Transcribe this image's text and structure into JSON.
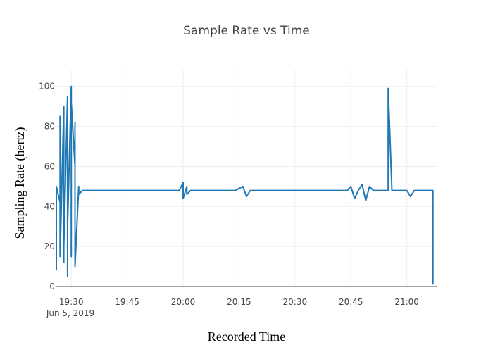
{
  "chart_data": {
    "type": "line",
    "title": "Sample Rate vs Time",
    "xlabel": "Recorded Time",
    "ylabel": "Sampling Rate (hertz)",
    "x_date_label": "Jun 5, 2019",
    "xlim": [
      "19:26",
      "21:08"
    ],
    "ylim": [
      0,
      108
    ],
    "grid": true,
    "x_ticks": [
      "19:30",
      "19:45",
      "20:00",
      "20:15",
      "20:30",
      "20:45",
      "21:00"
    ],
    "y_ticks": [
      0,
      20,
      40,
      60,
      80,
      100
    ],
    "series": [
      {
        "color": "#1f77b4",
        "x": [
          "19:26",
          "19:26",
          "19:27",
          "19:27",
          "19:27",
          "19:28",
          "19:28",
          "19:28",
          "19:28",
          "19:29",
          "19:29",
          "19:29",
          "19:29",
          "19:30",
          "19:30",
          "19:30",
          "19:31",
          "19:31",
          "19:31",
          "19:32",
          "19:32",
          "19:33",
          "19:35",
          "19:38",
          "19:41",
          "19:44",
          "19:47",
          "19:50",
          "19:53",
          "19:56",
          "19:59",
          "20:00",
          "20:00",
          "20:01",
          "20:01",
          "20:02",
          "20:05",
          "20:08",
          "20:11",
          "20:14",
          "20:16",
          "20:17",
          "20:18",
          "20:21",
          "20:24",
          "20:27",
          "20:30",
          "20:33",
          "20:36",
          "20:39",
          "20:42",
          "20:44",
          "20:45",
          "20:46",
          "20:47",
          "20:48",
          "20:49",
          "20:50",
          "20:51",
          "20:52",
          "20:54",
          "20:55",
          "20:55",
          "20:56",
          "20:57",
          "20:58",
          "20:59",
          "21:00",
          "21:01",
          "21:02",
          "21:03",
          "21:04",
          "21:05",
          "21:06",
          "21:07",
          "21:07"
        ],
        "values": [
          8,
          50,
          42,
          85,
          15,
          90,
          12,
          72,
          20,
          95,
          5,
          80,
          30,
          100,
          15,
          92,
          60,
          82,
          10,
          50,
          46,
          48,
          48,
          48,
          48,
          48,
          48,
          48,
          48,
          48,
          48,
          52,
          44,
          50,
          46,
          48,
          48,
          48,
          48,
          48,
          50,
          45,
          48,
          48,
          48,
          48,
          48,
          48,
          48,
          48,
          48,
          48,
          50,
          44,
          48,
          51,
          43,
          50,
          48,
          48,
          48,
          48,
          99,
          48,
          48,
          48,
          48,
          48,
          45,
          48,
          48,
          48,
          48,
          48,
          48,
          1
        ]
      }
    ]
  }
}
